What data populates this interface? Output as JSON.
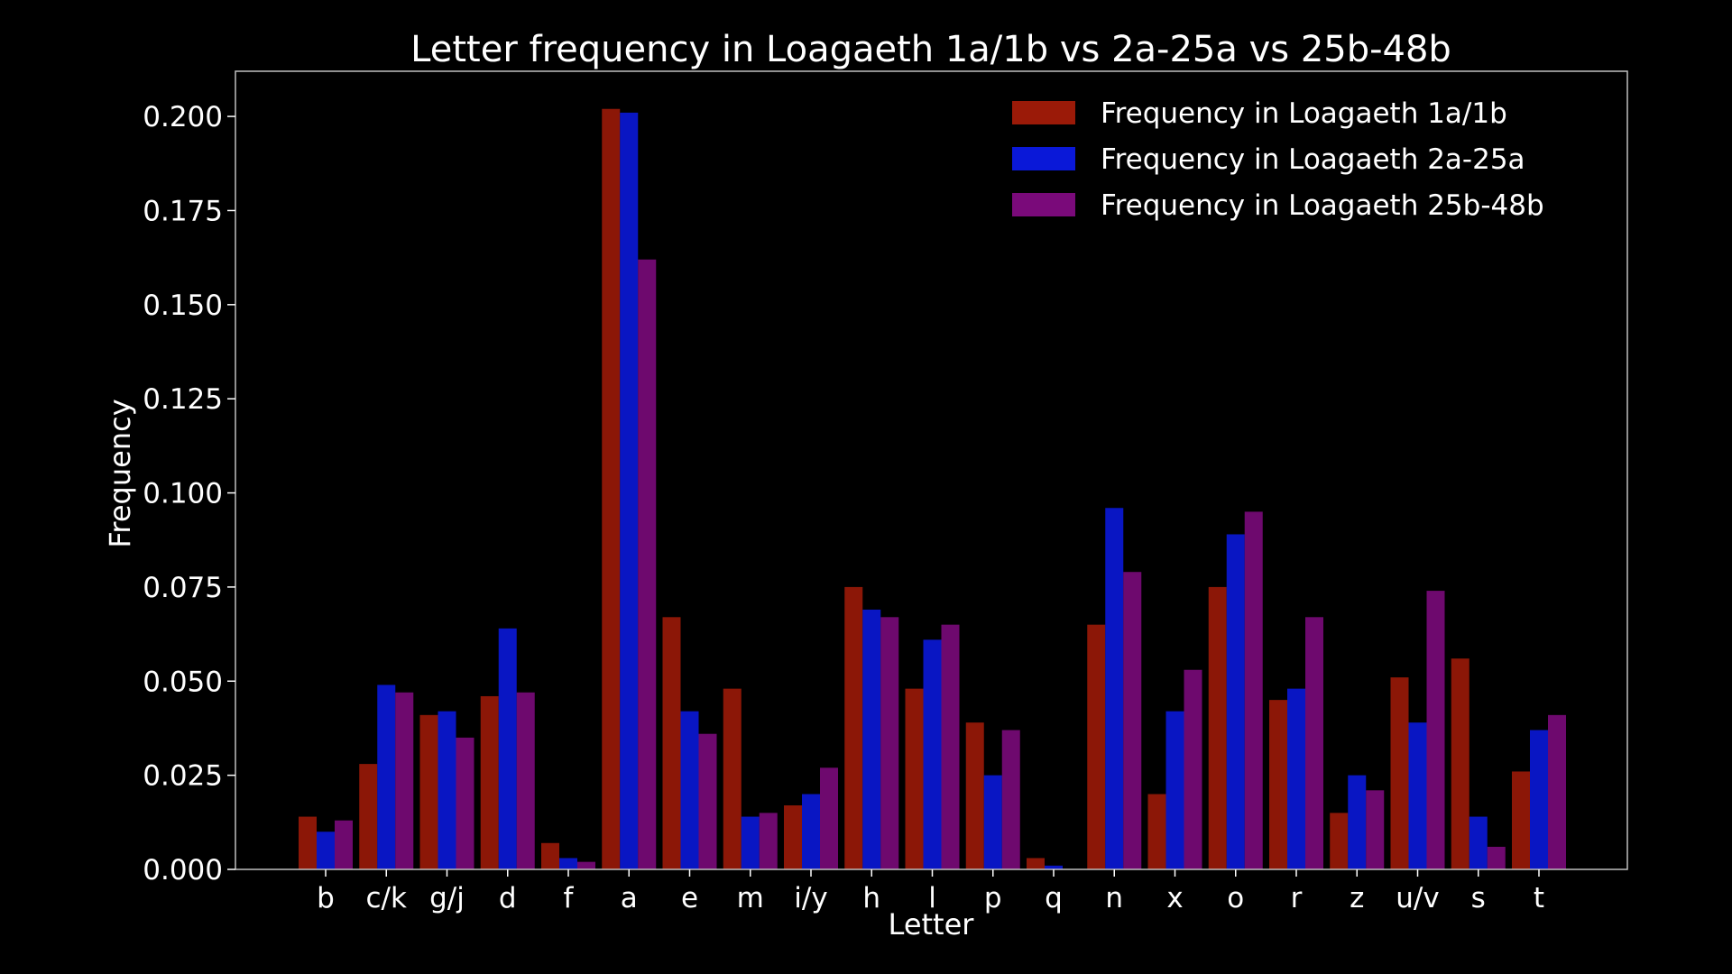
{
  "chart_data": {
    "type": "bar",
    "title": "Letter frequency in Loagaeth 1a/1b vs 2a-25a vs 25b-48b",
    "xlabel": "Letter",
    "ylabel": "Frequency",
    "ylim": [
      0,
      0.212
    ],
    "yticks": [
      0.0,
      0.025,
      0.05,
      0.075,
      0.1,
      0.125,
      0.15,
      0.175,
      0.2
    ],
    "ytick_labels": [
      "0.000",
      "0.025",
      "0.050",
      "0.075",
      "0.100",
      "0.125",
      "0.150",
      "0.175",
      "0.200"
    ],
    "grid": false,
    "legend_position": "top-right",
    "background": "#000000",
    "categories": [
      "b",
      "c/k",
      "g/j",
      "d",
      "f",
      "a",
      "e",
      "m",
      "i/y",
      "h",
      "l",
      "p",
      "q",
      "n",
      "x",
      "o",
      "r",
      "z",
      "u/v",
      "s",
      "t"
    ],
    "series": [
      {
        "name": "Frequency in Loagaeth 1a/1b",
        "color": "#9b1a08",
        "values": [
          0.014,
          0.028,
          0.041,
          0.046,
          0.007,
          0.202,
          0.067,
          0.048,
          0.017,
          0.075,
          0.048,
          0.039,
          0.003,
          0.065,
          0.02,
          0.075,
          0.045,
          0.015,
          0.051,
          0.056,
          0.026
        ]
      },
      {
        "name": "Frequency in Loagaeth 2a-25a",
        "color": "#0a18d8",
        "values": [
          0.01,
          0.049,
          0.042,
          0.064,
          0.003,
          0.201,
          0.042,
          0.014,
          0.02,
          0.069,
          0.061,
          0.025,
          0.001,
          0.096,
          0.042,
          0.089,
          0.048,
          0.025,
          0.039,
          0.014,
          0.037
        ]
      },
      {
        "name": "Frequency in Loagaeth 25b-48b",
        "color": "#7a0a7a",
        "values": [
          0.013,
          0.047,
          0.035,
          0.047,
          0.002,
          0.162,
          0.036,
          0.015,
          0.027,
          0.067,
          0.065,
          0.037,
          0.0,
          0.079,
          0.053,
          0.095,
          0.067,
          0.021,
          0.074,
          0.006,
          0.041
        ]
      }
    ]
  }
}
